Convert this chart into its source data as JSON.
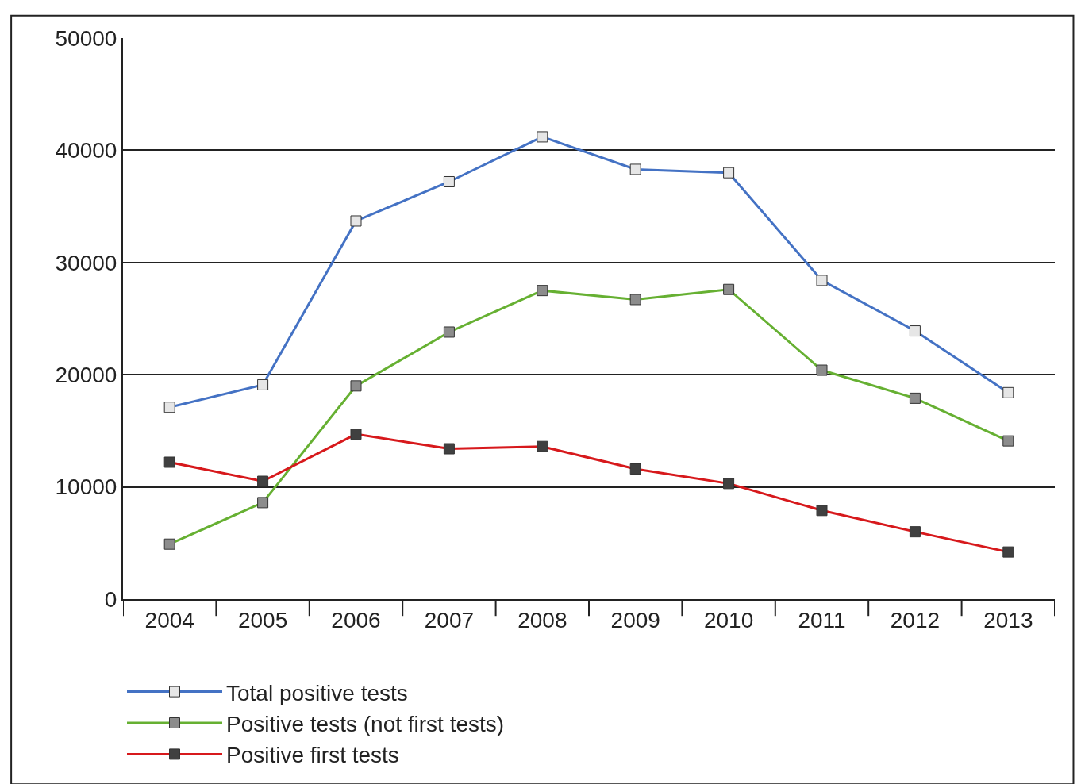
{
  "chart_data": {
    "type": "line",
    "categories": [
      "2004",
      "2005",
      "2006",
      "2007",
      "2008",
      "2009",
      "2010",
      "2011",
      "2012",
      "2013"
    ],
    "series": [
      {
        "name": "Total positive tests",
        "color": "#4472c4",
        "values": [
          17100,
          19100,
          33700,
          37200,
          41200,
          38300,
          38000,
          28400,
          23900,
          18400
        ]
      },
      {
        "name": "Positive tests (not first tests)",
        "color": "#66b032",
        "values": [
          4900,
          8600,
          19000,
          23800,
          27500,
          26700,
          27600,
          20400,
          17900,
          14100
        ]
      },
      {
        "name": "Positive first tests",
        "color": "#d7191c",
        "values": [
          12200,
          10500,
          14700,
          13400,
          13600,
          11600,
          10300,
          7900,
          6000,
          4200
        ]
      }
    ],
    "ylim": [
      0,
      50000
    ],
    "yticks": [
      0,
      10000,
      20000,
      30000,
      40000,
      50000
    ],
    "grid": "y",
    "legend": "bottom",
    "marker": "square",
    "line_style": "solid"
  }
}
